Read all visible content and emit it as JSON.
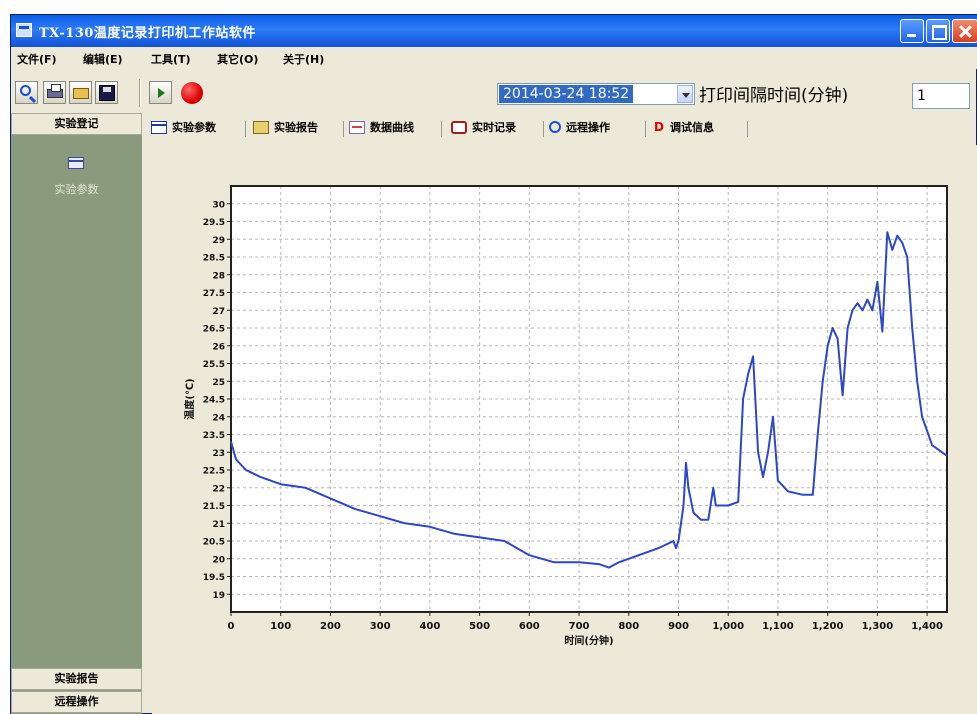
{
  "window": {
    "title": "TX-130温度记录打印机工作站软件"
  },
  "menu": [
    "文件(F)",
    "编辑(E)",
    "工具(T)",
    "其它(O)",
    "关于(H)"
  ],
  "toolbar": {
    "datetime": "2014-03-24 18:52",
    "interval_label": "打印间隔时间(分钟)",
    "interval_value": "1"
  },
  "sidebar": {
    "top_header": "实验登记",
    "item_label": "实验参数",
    "bottom_headers": [
      "实验报告",
      "远程操作"
    ]
  },
  "tabs": [
    {
      "label": "实验参数",
      "icon": "table-icon"
    },
    {
      "label": "实验报告",
      "icon": "report-icon"
    },
    {
      "label": "数据曲线",
      "icon": "curve-icon"
    },
    {
      "label": "实时记录",
      "icon": "printer-icon"
    },
    {
      "label": "远程操作",
      "icon": "magnifier-icon"
    },
    {
      "label": "调试信息",
      "icon": "debug-icon"
    }
  ],
  "chart_data": {
    "type": "line",
    "title": "",
    "xlabel": "时间(分钟)",
    "ylabel": "温度(℃)",
    "xlim": [
      0,
      1440
    ],
    "ylim": [
      18.5,
      30.5
    ],
    "xticks": [
      0,
      100,
      200,
      300,
      400,
      500,
      600,
      700,
      800,
      900,
      1000,
      1100,
      1200,
      1300,
      1400
    ],
    "xtick_labels": [
      "0",
      "100",
      "200",
      "300",
      "400",
      "500",
      "600",
      "700",
      "800",
      "900",
      "1,000",
      "1,100",
      "1,200",
      "1,300",
      "1,400"
    ],
    "yticks": [
      19,
      19.5,
      20,
      20.5,
      21,
      21.5,
      22,
      22.5,
      23,
      23.5,
      24,
      24.5,
      25,
      25.5,
      26,
      26.5,
      27,
      27.5,
      28,
      28.5,
      29,
      29.5,
      30
    ],
    "ytick_labels": [
      "19",
      "19.5",
      "20",
      "20.5",
      "21",
      "21.5",
      "22",
      "22.5",
      "23",
      "23.5",
      "24",
      "24.5",
      "25",
      "25.5",
      "26",
      "26.5",
      "27",
      "27.5",
      "28",
      "28.5",
      "29",
      "29.5",
      "30"
    ],
    "grid": true,
    "line_color": "#2c47c8",
    "series": [
      {
        "x": [
          0,
          10,
          30,
          60,
          100,
          150,
          200,
          250,
          300,
          350,
          400,
          450,
          500,
          550,
          600,
          650,
          700,
          740,
          760,
          780,
          820,
          860,
          890,
          895,
          900,
          910,
          915,
          920,
          930,
          945,
          960,
          970,
          975,
          980,
          1000,
          1020,
          1030,
          1040,
          1050,
          1060,
          1070,
          1080,
          1090,
          1100,
          1120,
          1150,
          1170,
          1180,
          1190,
          1200,
          1210,
          1220,
          1230,
          1240,
          1250,
          1260,
          1270,
          1280,
          1290,
          1300,
          1310,
          1320,
          1330,
          1340,
          1350,
          1360,
          1370,
          1380,
          1390,
          1410,
          1440
        ],
        "y": [
          23.3,
          22.8,
          22.5,
          22.3,
          22.1,
          22.0,
          21.7,
          21.4,
          21.2,
          21.0,
          20.9,
          20.7,
          20.6,
          20.5,
          20.1,
          19.9,
          19.9,
          19.85,
          19.75,
          19.9,
          20.1,
          20.3,
          20.5,
          20.3,
          20.5,
          21.5,
          22.7,
          22.0,
          21.3,
          21.1,
          21.1,
          22.0,
          21.5,
          21.5,
          21.5,
          21.6,
          24.5,
          25.2,
          25.7,
          23.0,
          22.3,
          23.0,
          24.0,
          22.2,
          21.9,
          21.8,
          21.8,
          23.5,
          25.0,
          26.0,
          26.5,
          26.2,
          24.6,
          26.5,
          27.0,
          27.2,
          27.0,
          27.3,
          27.0,
          27.8,
          26.4,
          29.2,
          28.7,
          29.1,
          28.9,
          28.5,
          26.5,
          25.0,
          24.0,
          23.2,
          22.9
        ]
      }
    ]
  }
}
